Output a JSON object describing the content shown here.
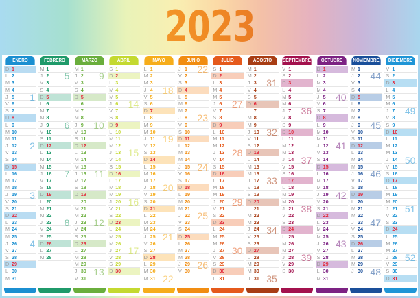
{
  "title": "2023",
  "months": [
    {
      "name": "ENERO",
      "color": "#1b8fd1",
      "hl": "#b9dcf2",
      "start": 0,
      "days": 31,
      "weeks": [
        {
          "n": "1",
          "row": 4
        },
        {
          "n": "2",
          "row": 11
        },
        {
          "n": "3",
          "row": 18
        },
        {
          "n": "4",
          "row": 25
        }
      ]
    },
    {
      "name": "FEBRERO",
      "color": "#1f9a6a",
      "hl": "#bfe3d6",
      "start": 3,
      "days": 28,
      "weeks": [
        {
          "n": "5",
          "row": 1
        },
        {
          "n": "6",
          "row": 8
        },
        {
          "n": "7",
          "row": 15
        },
        {
          "n": "8",
          "row": 22
        }
      ]
    },
    {
      "name": "MARZO",
      "color": "#6aae3c",
      "hl": "#d6e9c8",
      "start": 3,
      "days": 31,
      "weeks": [
        {
          "n": "9",
          "row": 1
        },
        {
          "n": "10",
          "row": 8
        },
        {
          "n": "11",
          "row": 15
        },
        {
          "n": "12",
          "row": 22
        },
        {
          "n": "13",
          "row": 29
        }
      ]
    },
    {
      "name": "ABRIL",
      "color": "#c4d930",
      "hl": "#ecf4c1",
      "start": 6,
      "days": 30,
      "weeks": [
        {
          "n": "14",
          "row": 5
        },
        {
          "n": "15",
          "row": 12
        },
        {
          "n": "16",
          "row": 19
        },
        {
          "n": "17",
          "row": 26
        }
      ]
    },
    {
      "name": "MAYO",
      "color": "#f6ad1b",
      "hl": "#fde3b9",
      "start": 1,
      "days": 31,
      "weeks": [
        {
          "n": "18",
          "row": 3
        },
        {
          "n": "19",
          "row": 10
        },
        {
          "n": "20",
          "row": 17
        },
        {
          "n": "21",
          "row": 24
        },
        {
          "n": "22",
          "row": 30
        }
      ]
    },
    {
      "name": "JUNIO",
      "color": "#f18d12",
      "hl": "#fcdcbd",
      "start": 4,
      "days": 30,
      "weeks": [
        {
          "n": "22",
          "row": 0
        },
        {
          "n": "23",
          "row": 7
        },
        {
          "n": "24",
          "row": 14
        },
        {
          "n": "25",
          "row": 21
        },
        {
          "n": "26",
          "row": 28
        }
      ]
    },
    {
      "name": "JULIO",
      "color": "#e55a1c",
      "hl": "#f8cdb9",
      "start": 6,
      "days": 31,
      "weeks": [
        {
          "n": "27",
          "row": 5
        },
        {
          "n": "28",
          "row": 12
        },
        {
          "n": "29",
          "row": 19
        },
        {
          "n": "30",
          "row": 26
        }
      ]
    },
    {
      "name": "AGOSTO",
      "color": "#a83d14",
      "hl": "#e8c5b8",
      "start": 2,
      "days": 31,
      "weeks": [
        {
          "n": "31",
          "row": 2
        },
        {
          "n": "32",
          "row": 9
        },
        {
          "n": "33",
          "row": 16
        },
        {
          "n": "34",
          "row": 23
        },
        {
          "n": "35",
          "row": 30
        }
      ]
    },
    {
      "name": "SEPTIEMBRE",
      "color": "#a3114d",
      "hl": "#e2b4ce",
      "start": 5,
      "days": 30,
      "weeks": [
        {
          "n": "36",
          "row": 6
        },
        {
          "n": "37",
          "row": 13
        },
        {
          "n": "38",
          "row": 20
        },
        {
          "n": "39",
          "row": 27
        }
      ]
    },
    {
      "name": "OCTUBRE",
      "color": "#7c2283",
      "hl": "#d6badd",
      "start": 0,
      "days": 31,
      "weeks": [
        {
          "n": "40",
          "row": 4
        },
        {
          "n": "41",
          "row": 11
        },
        {
          "n": "42",
          "row": 18
        },
        {
          "n": "43",
          "row": 25
        }
      ]
    },
    {
      "name": "NOVIEMBRE",
      "color": "#1a4f9a",
      "hl": "#b8cde6",
      "start": 3,
      "days": 30,
      "weeks": [
        {
          "n": "44",
          "row": 1
        },
        {
          "n": "45",
          "row": 8
        },
        {
          "n": "46",
          "row": 15
        },
        {
          "n": "47",
          "row": 22
        },
        {
          "n": "48",
          "row": 29
        }
      ]
    },
    {
      "name": "DICIEMBRE",
      "color": "#1f95d6",
      "hl": "#b7def3",
      "start": 5,
      "days": 31,
      "weeks": [
        {
          "n": "49",
          "row": 6
        },
        {
          "n": "50",
          "row": 13
        },
        {
          "n": "51",
          "row": 20
        },
        {
          "n": "52",
          "row": 27
        }
      ]
    }
  ],
  "weekday_letters": [
    "D",
    "L",
    "M",
    "M",
    "J",
    "V",
    "S"
  ],
  "holiday_color": "#e2283a"
}
